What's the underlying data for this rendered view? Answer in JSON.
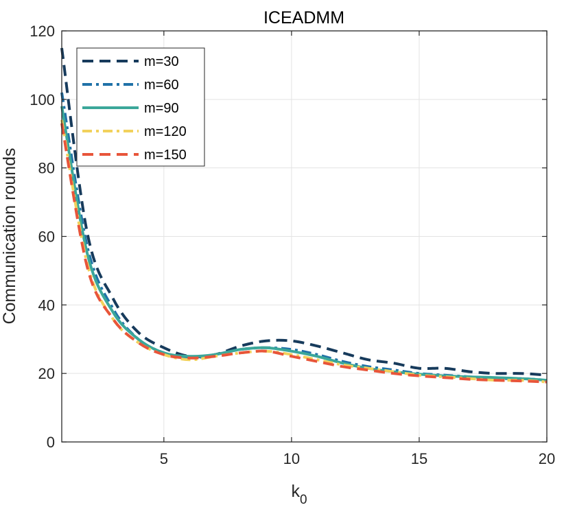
{
  "chart_data": {
    "type": "line",
    "title": "ICEADMM",
    "xlabel": "k",
    "xlabel_subscript": "0",
    "ylabel": "Communication rounds",
    "xlim": [
      1,
      20
    ],
    "ylim": [
      0,
      120
    ],
    "xticks": [
      5,
      10,
      15,
      20
    ],
    "xtick_labels": [
      "5",
      "10",
      "15",
      "20"
    ],
    "yticks": [
      0,
      20,
      40,
      60,
      80,
      100,
      120
    ],
    "ytick_labels": [
      "0",
      "20",
      "40",
      "60",
      "80",
      "100",
      "120"
    ],
    "grid": true,
    "legend_position": "top-left",
    "x": [
      1,
      2,
      3,
      4,
      5,
      6,
      7,
      8,
      9,
      10,
      11,
      12,
      13,
      14,
      15,
      16,
      17,
      18,
      19,
      20
    ],
    "series": [
      {
        "name": "m=30",
        "color": "#173b5c",
        "style": "dashed",
        "values": [
          115,
          61,
          42,
          32,
          27.5,
          25,
          25.5,
          28,
          29.5,
          29.5,
          28,
          26,
          24,
          23,
          21.5,
          21.5,
          20.5,
          20,
          20,
          19.5
        ]
      },
      {
        "name": "m=60",
        "color": "#2072a8",
        "style": "dashdot",
        "values": [
          102,
          57,
          39,
          30,
          26,
          24.5,
          25.5,
          27,
          27.5,
          27,
          25.5,
          23.5,
          22,
          21,
          20,
          19.5,
          19,
          18.5,
          18.5,
          18
        ]
      },
      {
        "name": "m=90",
        "color": "#3ba79a",
        "style": "solid",
        "values": [
          98,
          55,
          38,
          30,
          26,
          25,
          25.5,
          27,
          27.5,
          26.5,
          25,
          23,
          21.5,
          20.5,
          19.8,
          19.3,
          19,
          18.8,
          18.5,
          18
        ]
      },
      {
        "name": "m=120",
        "color": "#f2d15c",
        "style": "dashdot",
        "values": [
          94,
          52,
          36,
          29,
          25.5,
          24,
          25,
          26,
          26.5,
          25.5,
          24,
          22.5,
          21.5,
          20.5,
          19.5,
          19,
          18.5,
          18,
          18,
          17.5
        ]
      },
      {
        "name": "m=150",
        "color": "#e8553a",
        "style": "dashed",
        "values": [
          93,
          51,
          36,
          29,
          25.5,
          24.5,
          25,
          26,
          26.5,
          25,
          23.5,
          22,
          21,
          20,
          19.3,
          18.8,
          18.3,
          18,
          17.8,
          17.5
        ]
      }
    ]
  }
}
